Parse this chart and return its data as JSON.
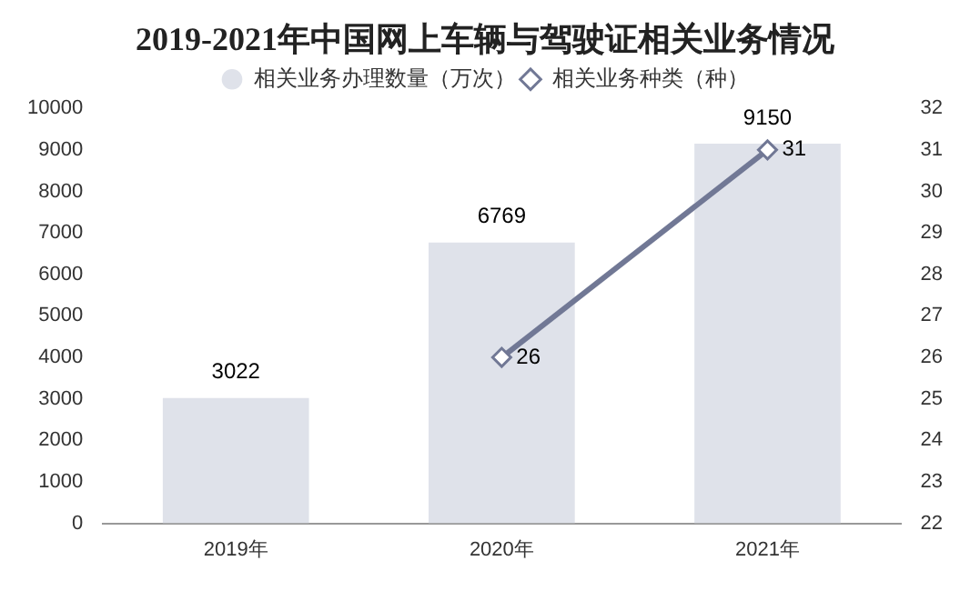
{
  "chart_data": {
    "type": "bar",
    "title": "2019-2021年中国网上车辆与驾驶证相关业务情况",
    "categories": [
      "2019年",
      "2020年",
      "2021年"
    ],
    "series": [
      {
        "name": "相关业务办理数量（万次）",
        "color": "#dfe2ea",
        "values": [
          3022,
          6769,
          9150
        ]
      },
      {
        "name": "相关业务种类（种）",
        "type": "line",
        "axis": "y2",
        "color": "#717895",
        "values": [
          null,
          26,
          31
        ],
        "marker": "diamond"
      }
    ],
    "ylim": [
      0,
      10000
    ],
    "yticks": [
      0,
      1000,
      2000,
      3000,
      4000,
      5000,
      6000,
      7000,
      8000,
      9000,
      10000
    ],
    "y2lim": [
      22,
      32
    ],
    "y2ticks": [
      22,
      23,
      24,
      25,
      26,
      27,
      28,
      29,
      30,
      31,
      32
    ],
    "data_labels": true,
    "legend": "top"
  }
}
